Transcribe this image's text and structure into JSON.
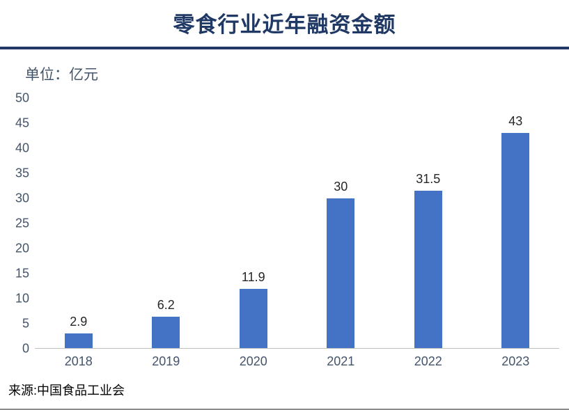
{
  "header": {
    "title": "零食行业近年融资金额"
  },
  "unit_label": "单位：亿元",
  "source": "来源:中国食品工业会",
  "colors": {
    "title": "#1F3864",
    "bar": "#4472C4",
    "axis_text": "#44546A"
  },
  "chart_data": {
    "type": "bar",
    "title": "零食行业近年融资金额",
    "unit": "亿元",
    "categories": [
      "2018",
      "2019",
      "2020",
      "2021",
      "2022",
      "2023"
    ],
    "values": [
      2.9,
      6.2,
      11.9,
      30,
      31.5,
      43
    ],
    "xlabel": "",
    "ylabel": "亿元",
    "ylim": [
      0,
      50
    ],
    "yticks": [
      0,
      5,
      10,
      15,
      20,
      25,
      30,
      35,
      40,
      45,
      50
    ],
    "grid": false,
    "legend": false,
    "data_labels": true,
    "source": "来源:中国食品工业会"
  }
}
